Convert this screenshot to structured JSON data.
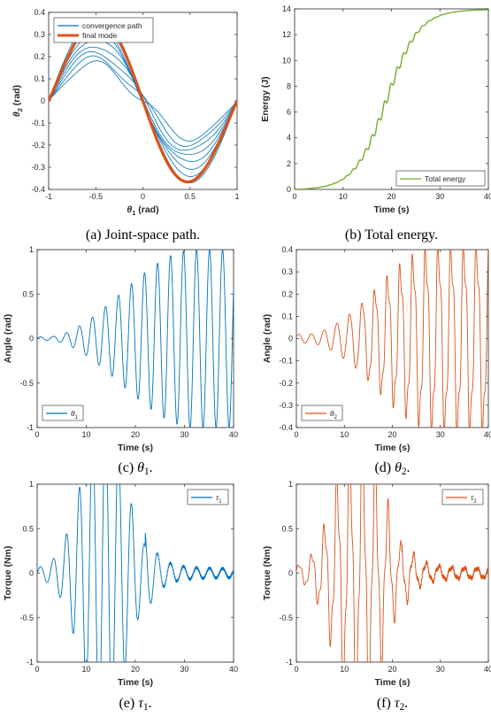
{
  "chart_data": [
    {
      "id": "a",
      "type": "line",
      "caption": "(a) Joint-space path.",
      "xlabel": "θ1 (rad)",
      "ylabel": "θ2 (rad)",
      "xlim": [
        -1,
        1
      ],
      "ylim": [
        -0.4,
        0.4
      ],
      "xticks": [
        "-1",
        "-0.5",
        "0",
        "0.5",
        "1"
      ],
      "yticks": [
        "0.4",
        "0.3",
        "0.2",
        "0.1",
        "0",
        "-0.1",
        "-0.2",
        "-0.3",
        "-0.4"
      ],
      "legend": {
        "position": "top-left",
        "entries": [
          "convergence path",
          "final mode"
        ]
      },
      "series": [
        {
          "name": "convergence path",
          "color": "#0072BD",
          "kind": "convergence"
        },
        {
          "name": "final mode",
          "color": "#D95319",
          "kind": "mode",
          "amplitude": 0.39
        }
      ]
    },
    {
      "id": "b",
      "type": "line",
      "caption": "(b) Total energy.",
      "xlabel": "Time (s)",
      "ylabel": "Energy (J)",
      "xlim": [
        0,
        40
      ],
      "ylim": [
        0,
        14
      ],
      "xticks": [
        "0",
        "10",
        "20",
        "30",
        "40"
      ],
      "yticks": [
        "14",
        "12",
        "10",
        "8",
        "6",
        "4",
        "2",
        "0"
      ],
      "legend": {
        "position": "bottom-right",
        "entries": [
          "Total energy"
        ]
      },
      "series": [
        {
          "name": "Total energy",
          "color": "#77AC30",
          "kind": "energy",
          "max": 14,
          "midpoint": 19
        }
      ]
    },
    {
      "id": "c",
      "type": "line",
      "caption": "(c) θ1.",
      "xlabel": "Time (s)",
      "ylabel": "Angle (rad)",
      "xlim": [
        0,
        40
      ],
      "ylim": [
        -1,
        1
      ],
      "xticks": [
        "0",
        "10",
        "20",
        "30",
        "40"
      ],
      "yticks": [
        "1",
        "0.5",
        "0",
        "-0.5",
        "-1"
      ],
      "legend": {
        "position": "bottom-left",
        "entries": [
          "θ1"
        ]
      },
      "series": [
        {
          "name": "θ1",
          "color": "#0072BD",
          "kind": "angle",
          "amplitude": 1.0,
          "period": 2.65
        }
      ]
    },
    {
      "id": "d",
      "type": "line",
      "caption": "(d) θ2.",
      "xlabel": "Time (s)",
      "ylabel": "Angle (rad)",
      "xlim": [
        0,
        40
      ],
      "ylim": [
        -0.4,
        0.4
      ],
      "xticks": [
        "0",
        "10",
        "20",
        "30",
        "40"
      ],
      "yticks": [
        "0.4",
        "0.3",
        "0.2",
        "0.1",
        "0",
        "-0.1",
        "-0.2",
        "-0.3",
        "-0.4"
      ],
      "legend": {
        "position": "bottom-left",
        "entries": [
          "θ2"
        ]
      },
      "series": [
        {
          "name": "θ2",
          "color": "#D95319",
          "kind": "angle2",
          "amplitude": 0.39,
          "period": 2.65
        }
      ]
    },
    {
      "id": "e",
      "type": "line",
      "caption": "(e) τ1.",
      "xlabel": "Time (s)",
      "ylabel": "Torque (Nm)",
      "xlim": [
        0,
        40
      ],
      "ylim": [
        -1,
        1
      ],
      "xticks": [
        "0",
        "10",
        "20",
        "30",
        "40"
      ],
      "yticks": [
        "1",
        "0.5",
        "0",
        "-0.5",
        "-1"
      ],
      "legend": {
        "position": "top-right",
        "entries": [
          "τ1"
        ]
      },
      "series": [
        {
          "name": "τ1",
          "color": "#0072BD",
          "kind": "torque",
          "peak": 1.0
        }
      ]
    },
    {
      "id": "f",
      "type": "line",
      "caption": "(f) τ2.",
      "xlabel": "Time (s)",
      "ylabel": "Torque (Nm)",
      "xlim": [
        0,
        40
      ],
      "ylim": [
        -1,
        1
      ],
      "xticks": [
        "0",
        "10",
        "20",
        "30",
        "40"
      ],
      "yticks": [
        "1",
        "0.5",
        "0",
        "-0.5",
        "-1"
      ],
      "legend": {
        "position": "top-right",
        "entries": [
          "τ2"
        ]
      },
      "series": [
        {
          "name": "τ2",
          "color": "#D95319",
          "kind": "torque2",
          "peak": 1.0
        }
      ]
    }
  ]
}
